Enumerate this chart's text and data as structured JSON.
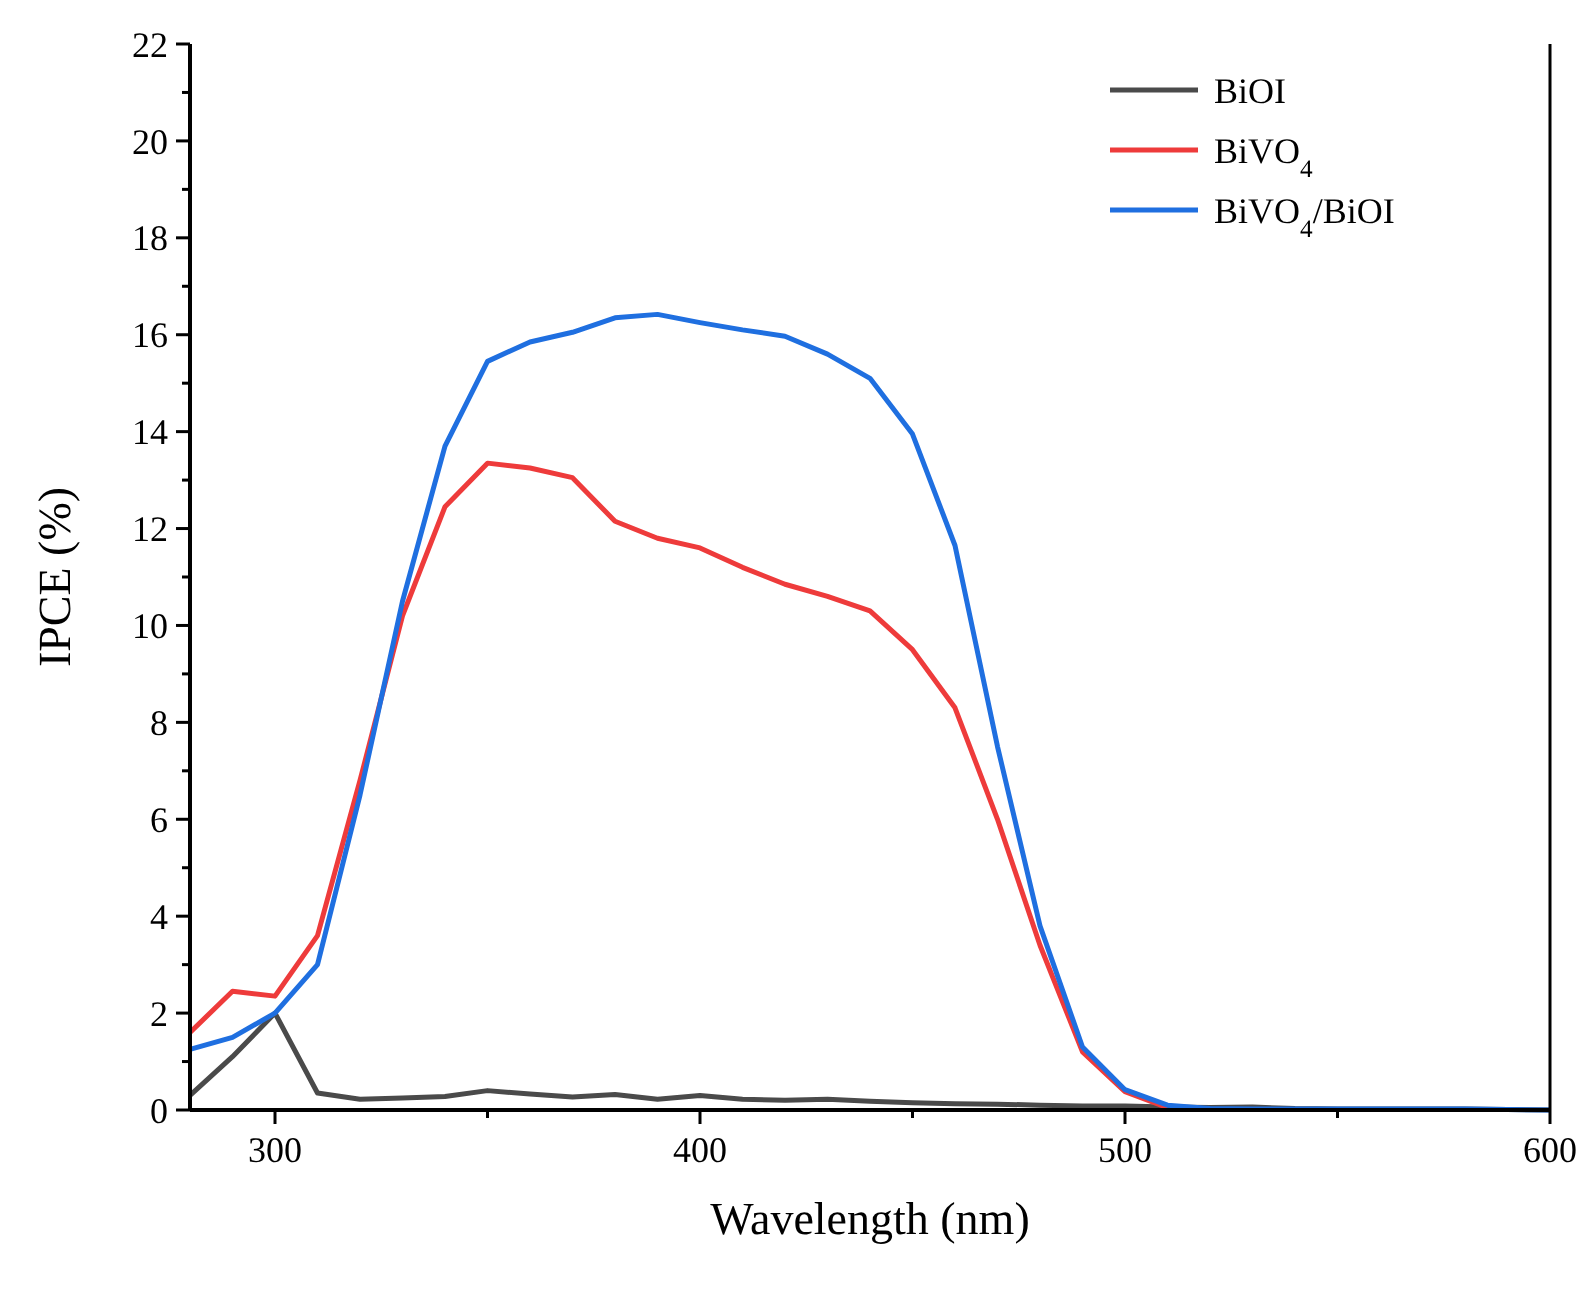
{
  "chart_data": {
    "type": "line",
    "xlabel": "Wavelength (nm)",
    "ylabel": "IPCE (%)",
    "x": [
      280,
      290,
      300,
      310,
      320,
      330,
      340,
      350,
      360,
      370,
      380,
      390,
      400,
      410,
      420,
      430,
      440,
      450,
      460,
      470,
      480,
      490,
      500,
      510,
      520,
      530,
      540,
      550,
      560,
      570,
      580,
      590,
      600
    ],
    "series": [
      {
        "name": "BiOI",
        "color": "#4a4a4a",
        "values": [
          0.3,
          1.1,
          2.0,
          0.35,
          0.22,
          0.25,
          0.28,
          0.4,
          0.33,
          0.27,
          0.32,
          0.22,
          0.3,
          0.22,
          0.2,
          0.22,
          0.18,
          0.15,
          0.13,
          0.12,
          0.1,
          0.08,
          0.08,
          0.06,
          0.05,
          0.06,
          0.03,
          0.02,
          0.02,
          0.02,
          0.02,
          0.01,
          0
        ]
      },
      {
        "name": "BiVO$_{4}$",
        "color": "#ee3b3b",
        "values": [
          1.6,
          2.45,
          2.35,
          3.6,
          6.8,
          10.2,
          12.45,
          13.35,
          13.25,
          13.05,
          12.15,
          11.8,
          11.6,
          11.2,
          10.85,
          10.6,
          10.3,
          9.5,
          8.3,
          6.0,
          3.4,
          1.2,
          0.38,
          0.05,
          null,
          null,
          null,
          null,
          null,
          null,
          null,
          null,
          null
        ]
      },
      {
        "name": "BiVO$_{4}$/BiOI",
        "color": "#1f6fe0",
        "values": [
          1.25,
          1.5,
          2.0,
          3.0,
          6.5,
          10.5,
          13.7,
          15.45,
          15.85,
          16.05,
          16.35,
          16.42,
          16.25,
          16.1,
          15.97,
          15.6,
          15.1,
          13.95,
          11.65,
          7.5,
          3.8,
          1.3,
          0.42,
          0.1,
          0.03,
          0.02,
          0.02,
          0.02,
          0.02,
          0.02,
          0.02,
          0.01,
          0
        ]
      }
    ],
    "xlim": [
      280,
      600
    ],
    "xticks": [
      300,
      {
        "value": 350,
        "label": null
      },
      400,
      {
        "value": 450,
        "label": null
      },
      500,
      {
        "value": 550,
        "label": null
      },
      600
    ],
    "ylim": [
      0,
      22
    ],
    "yticks": [
      0,
      {
        "value": 1,
        "label": null
      },
      2,
      {
        "value": 3,
        "label": null
      },
      4,
      {
        "value": 5,
        "label": null
      },
      6,
      {
        "value": 7,
        "label": null
      },
      8,
      {
        "value": 9,
        "label": null
      },
      10,
      {
        "value": 11,
        "label": null
      },
      12,
      {
        "value": 13,
        "label": null
      },
      14,
      {
        "value": 15,
        "label": null
      },
      16,
      {
        "value": 17,
        "label": null
      },
      18,
      {
        "value": 19,
        "label": null
      },
      20,
      {
        "value": 21,
        "label": null
      },
      22
    ],
    "legend": "top right",
    "grid": false,
    "marker": "none",
    "line_style": "solid"
  }
}
